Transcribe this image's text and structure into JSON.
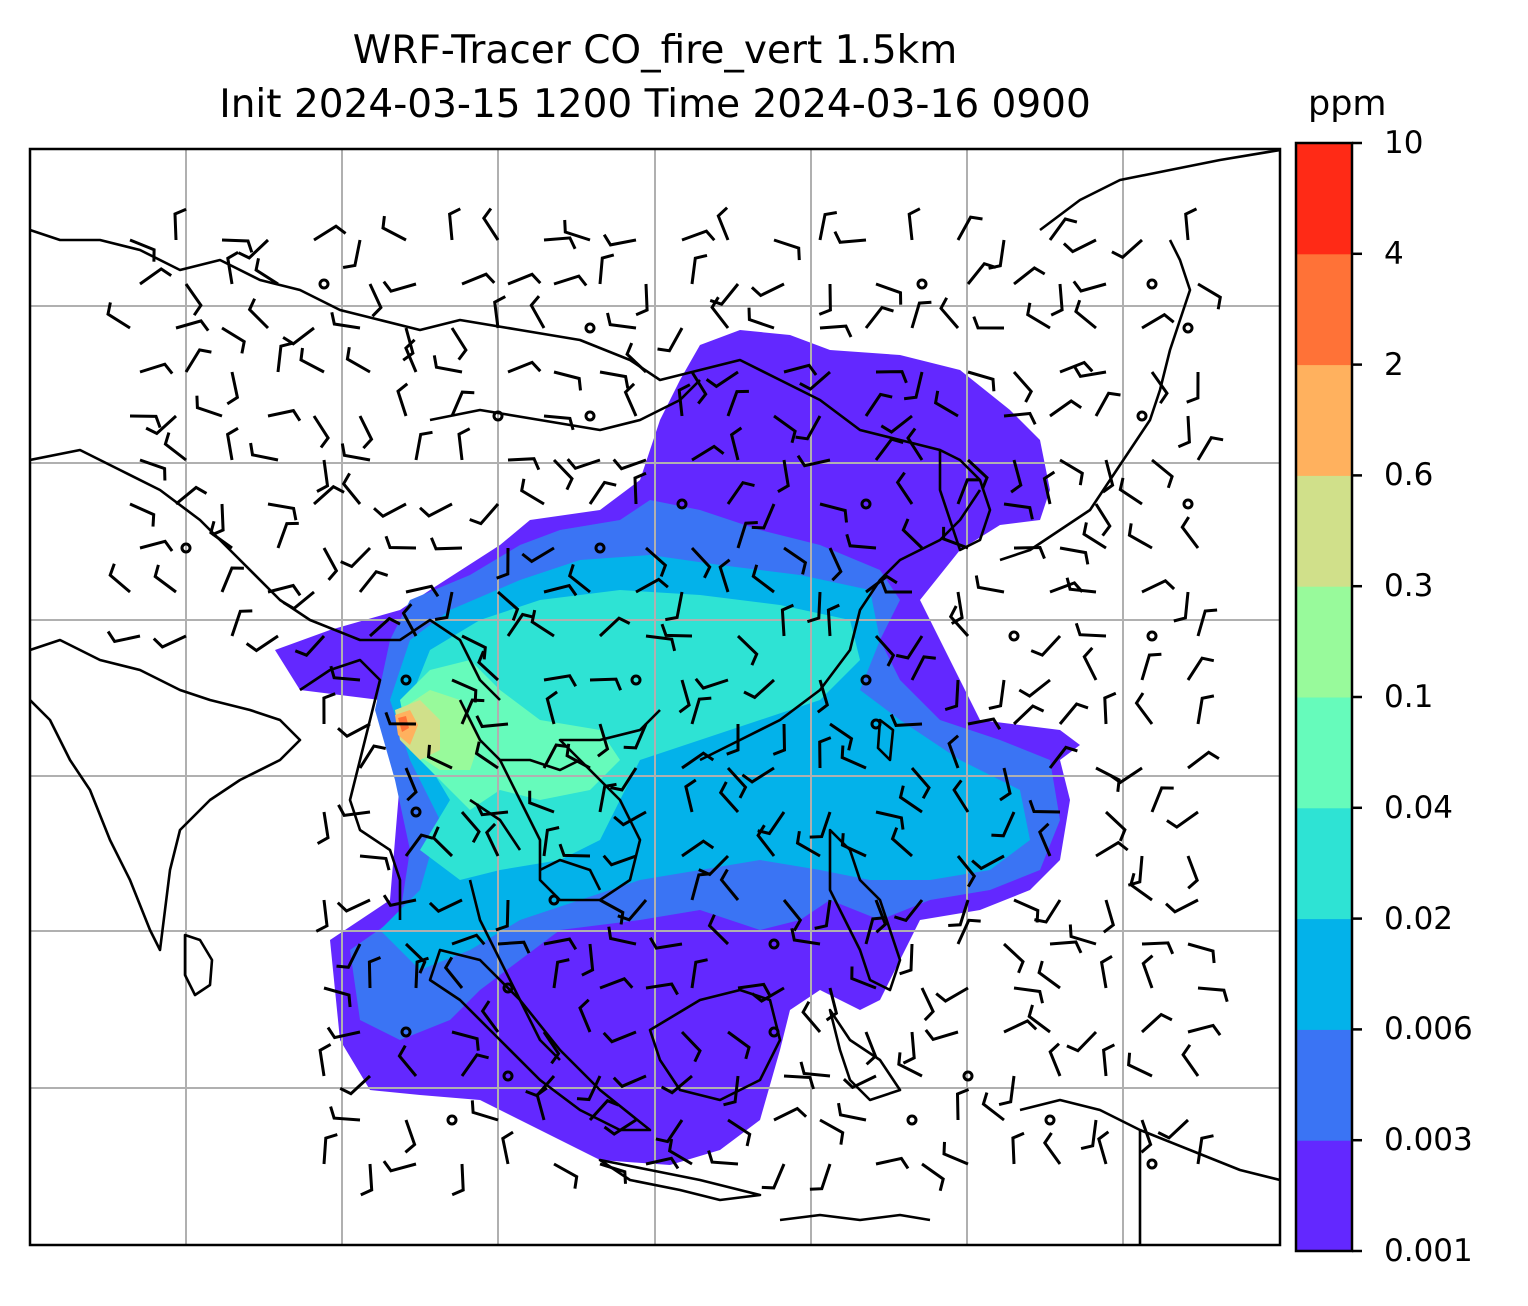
{
  "title": {
    "line1": "WRF-Tracer CO_fire_vert 1.5km",
    "line2": "Init 2024-03-15 1200 Time 2024-03-16 0900"
  },
  "colorbar": {
    "unit": "ppm",
    "levels": [
      "0.001",
      "0.003",
      "0.006",
      "0.02",
      "0.04",
      "0.1",
      "0.3",
      "0.6",
      "2",
      "4",
      "10"
    ],
    "colors": [
      "#6328ff",
      "#3a74f4",
      "#03b2ea",
      "#2ee3d4",
      "#66fbbb",
      "#98fa9b",
      "#d0e08a",
      "#ffb15e",
      "#ff7237",
      "#ff2a16"
    ]
  },
  "map": {
    "field": "CO_fire_vert",
    "level": "1.5km",
    "gridlines": true,
    "coastlines": true,
    "wind_barbs": true
  }
}
